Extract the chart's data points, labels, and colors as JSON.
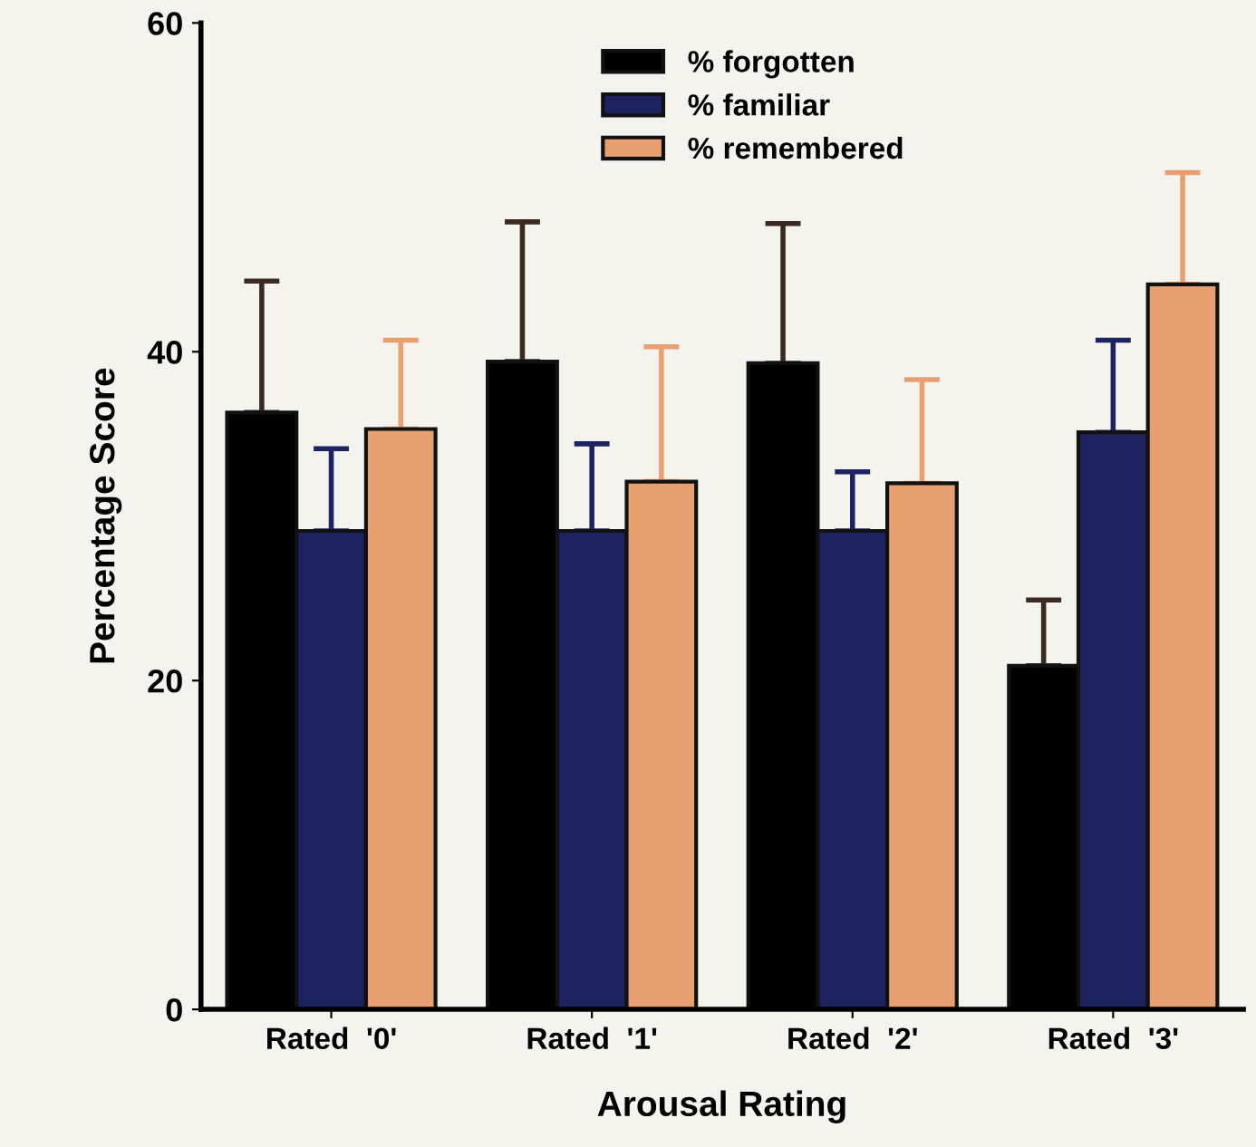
{
  "chart_data": {
    "type": "bar",
    "xlabel": "Arousal Rating",
    "ylabel": "Percentage Score",
    "categories": [
      "Rated  '0'",
      "Rated  '1'",
      "Rated  '2'",
      "Rated  '3'"
    ],
    "series": [
      {
        "name": "% forgotten",
        "color": "#000000",
        "values": [
          36.3,
          39.4,
          39.3,
          20.9
        ],
        "errors": [
          [
            36.3,
            44.3
          ],
          [
            39.4,
            47.9
          ],
          [
            39.3,
            47.8
          ],
          [
            20.9,
            24.9
          ]
        ]
      },
      {
        "name": "% familiar",
        "color": "#1c2360",
        "values": [
          29.1,
          29.1,
          29.1,
          35.1
        ],
        "errors": [
          [
            29.1,
            34.1
          ],
          [
            29.1,
            34.4
          ],
          [
            29.1,
            32.7
          ],
          [
            35.1,
            40.7
          ]
        ]
      },
      {
        "name": "% remembered",
        "color": "#e8a070",
        "values": [
          35.3,
          32.1,
          32.0,
          44.1
        ],
        "errors": [
          [
            35.3,
            40.7
          ],
          [
            32.1,
            40.3
          ],
          [
            32.0,
            38.3
          ],
          [
            44.1,
            50.9
          ]
        ]
      }
    ],
    "ylim": [
      0,
      60
    ],
    "yticks": [
      0,
      20,
      40,
      60
    ],
    "grid": false,
    "legend": "top"
  }
}
